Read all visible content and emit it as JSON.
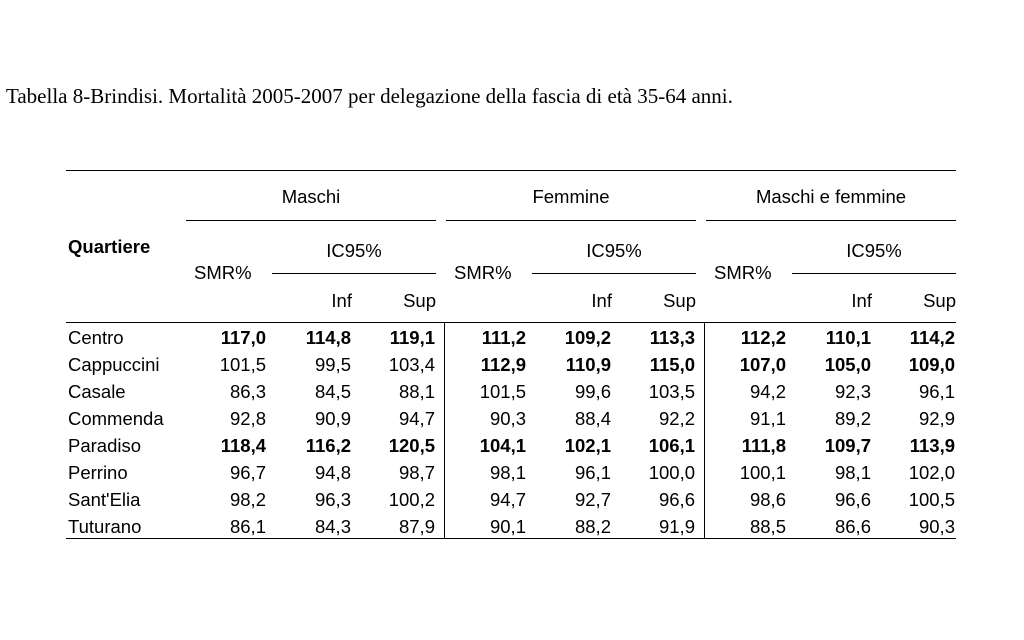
{
  "caption": "Tabella 8-Brindisi. Mortalità 2005-2007 per delegazione della fascia di età 35-64 anni.",
  "headers": {
    "row_header": "Quartiere",
    "groups": [
      "Maschi",
      "Femmine",
      "Maschi e femmine"
    ],
    "smr": "SMR%",
    "ic": "IC95%",
    "inf": "Inf",
    "sup": "Sup"
  },
  "rows": [
    {
      "name": "Centro",
      "values": [
        "117,0",
        "114,8",
        "119,1",
        "111,2",
        "109,2",
        "113,3",
        "112,2",
        "110,1",
        "114,2"
      ],
      "bold": [
        true,
        true,
        true
      ]
    },
    {
      "name": "Cappuccini",
      "values": [
        "101,5",
        "99,5",
        "103,4",
        "112,9",
        "110,9",
        "115,0",
        "107,0",
        "105,0",
        "109,0"
      ],
      "bold": [
        false,
        true,
        true
      ]
    },
    {
      "name": "Casale",
      "values": [
        "86,3",
        "84,5",
        "88,1",
        "101,5",
        "99,6",
        "103,5",
        "94,2",
        "92,3",
        "96,1"
      ],
      "bold": [
        false,
        false,
        false
      ]
    },
    {
      "name": "Commenda",
      "values": [
        "92,8",
        "90,9",
        "94,7",
        "90,3",
        "88,4",
        "92,2",
        "91,1",
        "89,2",
        "92,9"
      ],
      "bold": [
        false,
        false,
        false
      ]
    },
    {
      "name": "Paradiso",
      "values": [
        "118,4",
        "116,2",
        "120,5",
        "104,1",
        "102,1",
        "106,1",
        "111,8",
        "109,7",
        "113,9"
      ],
      "bold": [
        true,
        true,
        true
      ]
    },
    {
      "name": "Perrino",
      "values": [
        "96,7",
        "94,8",
        "98,7",
        "98,1",
        "96,1",
        "100,0",
        "100,1",
        "98,1",
        "102,0"
      ],
      "bold": [
        false,
        false,
        false
      ]
    },
    {
      "name": "Sant'Elia",
      "values": [
        "98,2",
        "96,3",
        "100,2",
        "94,7",
        "92,7",
        "96,6",
        "98,6",
        "96,6",
        "100,5"
      ],
      "bold": [
        false,
        false,
        false
      ]
    },
    {
      "name": "Tuturano",
      "values": [
        "86,1",
        "84,3",
        "87,9",
        "90,1",
        "88,2",
        "91,9",
        "88,5",
        "86,6",
        "90,3"
      ],
      "bold": [
        false,
        false,
        false
      ]
    }
  ]
}
